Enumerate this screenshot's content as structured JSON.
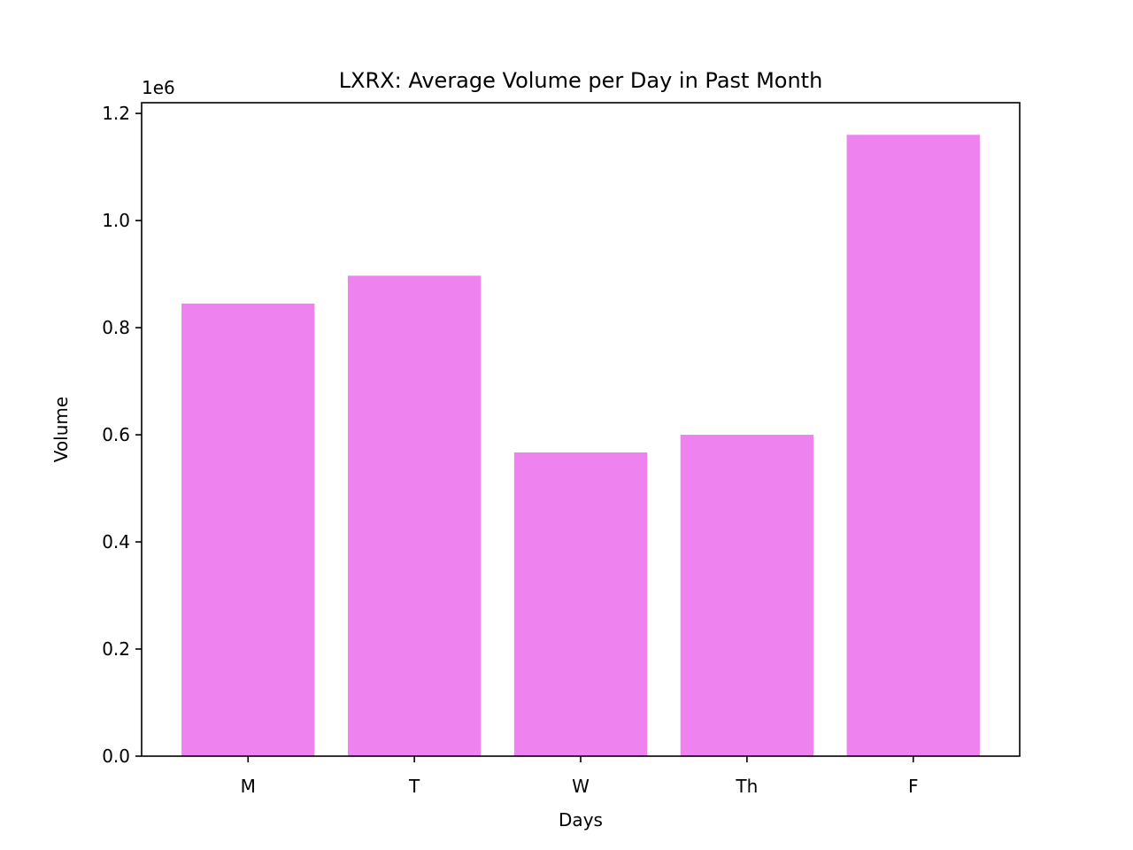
{
  "chart_data": {
    "type": "bar",
    "title": "LXRX: Average Volume per Day in Past Month",
    "xlabel": "Days",
    "ylabel": "Volume",
    "y_multiplier_label": "1e6",
    "categories": [
      "M",
      "T",
      "W",
      "Th",
      "F"
    ],
    "values": [
      845000,
      897000,
      567000,
      600000,
      1160000
    ],
    "ylim": [
      0,
      1220000
    ],
    "yticks": [
      0,
      200000,
      400000,
      600000,
      800000,
      1000000,
      1200000
    ],
    "ytick_labels": [
      "0.0",
      "0.2",
      "0.4",
      "0.6",
      "0.8",
      "1.0",
      "1.2"
    ],
    "bar_color": "#ee82ee",
    "grid": false,
    "legend": "none"
  }
}
